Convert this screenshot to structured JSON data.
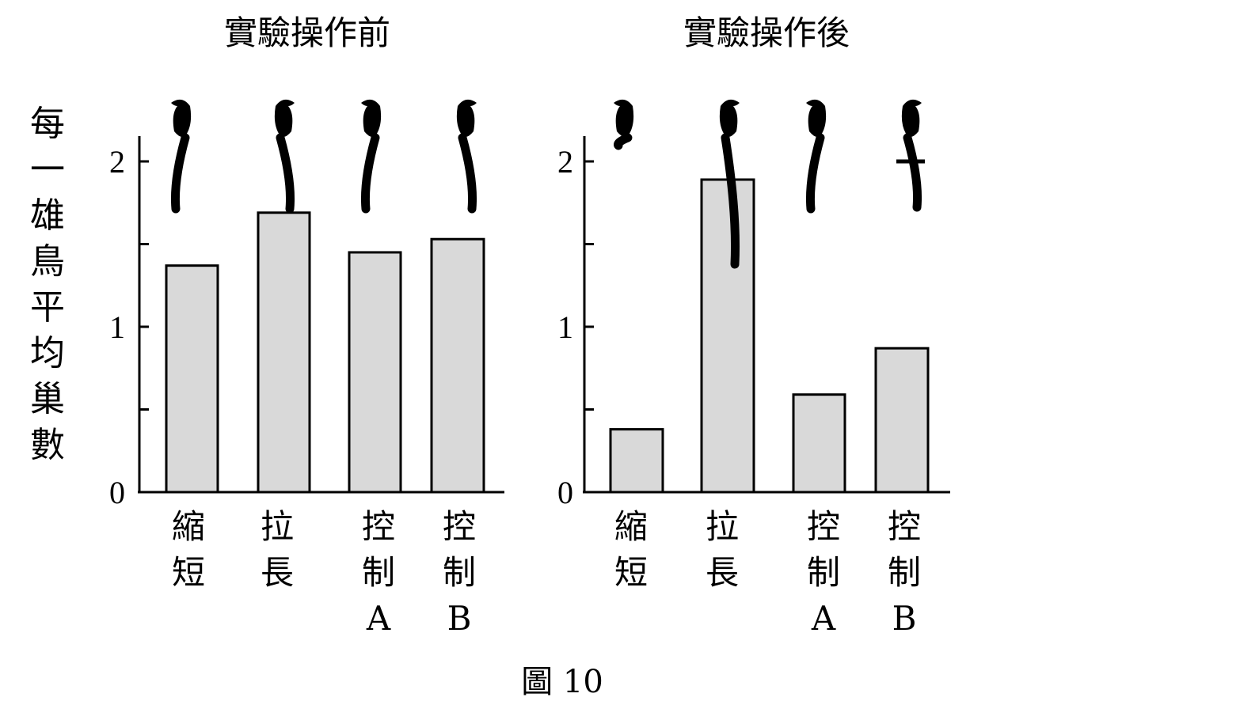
{
  "figure_caption": "圖 10",
  "y_axis_label_chars": [
    "每",
    "一",
    "雄",
    "鳥",
    "平",
    "均",
    "巢",
    "數"
  ],
  "chart_data": [
    {
      "type": "bar",
      "title": "實驗操作前",
      "ylabel": "每一雄鳥平均巢數",
      "ylim": [
        0,
        2.15
      ],
      "yticks": [
        0,
        1,
        2
      ],
      "categories": [
        {
          "lines": [
            "縮",
            "短"
          ],
          "tail": "shortened"
        },
        {
          "lines": [
            "拉",
            "長"
          ],
          "tail": "elongated"
        },
        {
          "lines": [
            "控",
            "制",
            "A"
          ],
          "tail": "control"
        },
        {
          "lines": [
            "控",
            "制",
            "B"
          ],
          "tail": "control-cut"
        }
      ],
      "values": [
        1.37,
        1.69,
        1.45,
        1.53
      ],
      "bar_color": "#d9d9d9",
      "bird_icons_all_same": true
    },
    {
      "type": "bar",
      "title": "實驗操作後",
      "ylabel": "每一雄鳥平均巢數",
      "ylim": [
        0,
        2.15
      ],
      "yticks": [
        0,
        1,
        2
      ],
      "categories": [
        {
          "lines": [
            "縮",
            "短"
          ],
          "tail": "shortened"
        },
        {
          "lines": [
            "拉",
            "長"
          ],
          "tail": "elongated"
        },
        {
          "lines": [
            "控",
            "制",
            "A"
          ],
          "tail": "control"
        },
        {
          "lines": [
            "控",
            "制",
            "B"
          ],
          "tail": "control-cut"
        }
      ],
      "values": [
        0.38,
        1.89,
        0.59,
        0.87
      ],
      "bar_color": "#d9d9d9",
      "bird_icons_all_same": false
    }
  ]
}
